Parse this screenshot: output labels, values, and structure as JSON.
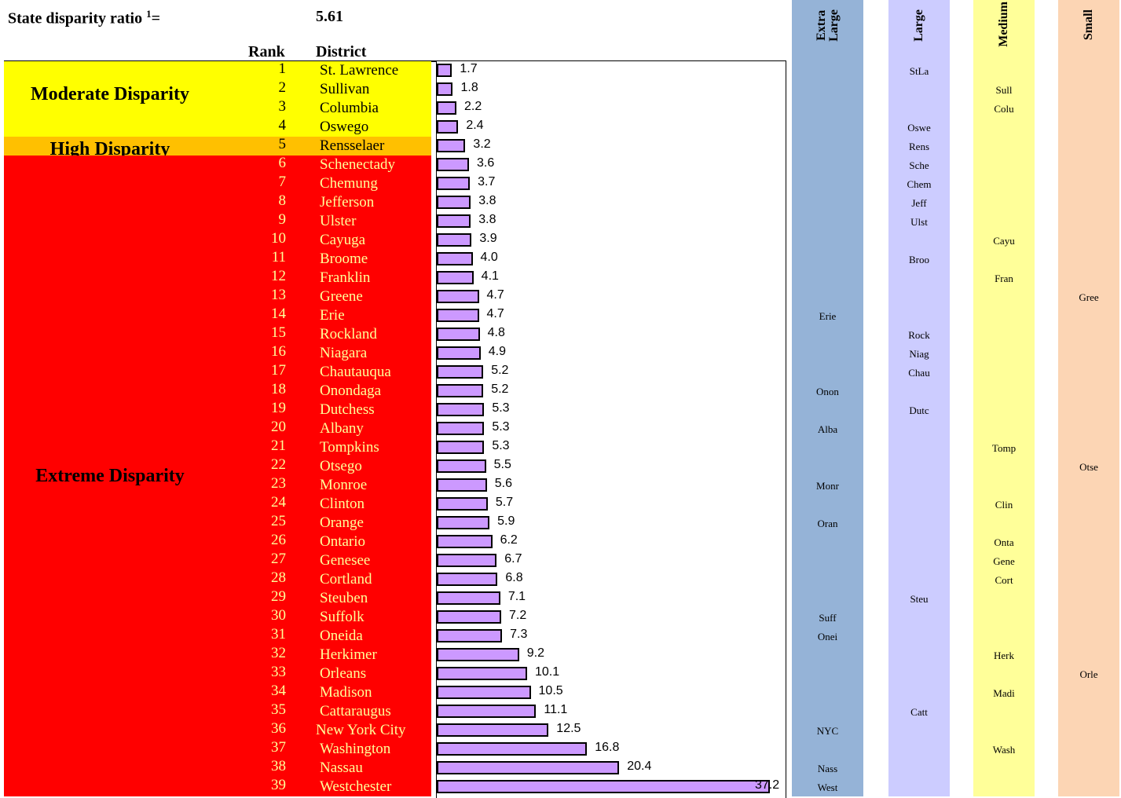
{
  "header": {
    "ratio_label": "State disparity ratio",
    "ratio_superscript": "1",
    "ratio_equals": "=",
    "ratio_value": "5.61",
    "rank_header": "Rank",
    "district_header": "District"
  },
  "bands": [
    {
      "label": "Moderate Disparity",
      "from_rank": 1,
      "to_rank": 4,
      "color": "#ffff00",
      "text_color": "#000000"
    },
    {
      "label": "High Disparity",
      "from_rank": 5,
      "to_rank": 5,
      "color": "#ffc000",
      "text_color": "#000000"
    },
    {
      "label": "Extreme Disparity",
      "from_rank": 6,
      "to_rank": 39,
      "color": "#ff0000",
      "text_color": "#000000"
    }
  ],
  "size_columns": [
    {
      "key": "xl",
      "label": "Extra\nLarge",
      "color": "#95b3d7"
    },
    {
      "key": "l",
      "label": "Large",
      "color": "#ccccff"
    },
    {
      "key": "m",
      "label": "Medium",
      "color": "#ffff99"
    },
    {
      "key": "s",
      "label": "Small",
      "color": "#fcd5b4"
    }
  ],
  "colors": {
    "bar_fill": "#cc99ff",
    "moderate_text": "#000000",
    "extreme_text": "#ffff99"
  },
  "chart_data": {
    "type": "bar",
    "orientation": "horizontal",
    "xlim": [
      0,
      39
    ],
    "rows": [
      {
        "rank": "1",
        "district": "St. Lawrence",
        "value": 1.7,
        "label": "1.7",
        "size": "l",
        "abbr": "StLa"
      },
      {
        "rank": "2",
        "district": "Sullivan",
        "value": 1.8,
        "label": "1.8",
        "size": "m",
        "abbr": "Sull"
      },
      {
        "rank": "3",
        "district": "Columbia",
        "value": 2.2,
        "label": "2.2",
        "size": "m",
        "abbr": "Colu"
      },
      {
        "rank": "4",
        "district": "Oswego",
        "value": 2.4,
        "label": "2.4",
        "size": "l",
        "abbr": "Oswe"
      },
      {
        "rank": "5",
        "district": "Rensselaer",
        "value": 3.2,
        "label": "3.2",
        "size": "l",
        "abbr": "Rens"
      },
      {
        "rank": "6",
        "district": "Schenectady",
        "value": 3.6,
        "label": "3.6",
        "size": "l",
        "abbr": "Sche"
      },
      {
        "rank": "7",
        "district": "Chemung",
        "value": 3.7,
        "label": "3.7",
        "size": "l",
        "abbr": "Chem"
      },
      {
        "rank": "8",
        "district": "Jefferson",
        "value": 3.8,
        "label": "3.8",
        "size": "l",
        "abbr": "Jeff"
      },
      {
        "rank": "9",
        "district": "Ulster",
        "value": 3.8,
        "label": "3.8",
        "size": "l",
        "abbr": "Ulst"
      },
      {
        "rank": "10",
        "district": "Cayuga",
        "value": 3.9,
        "label": "3.9",
        "size": "m",
        "abbr": "Cayu"
      },
      {
        "rank": "11",
        "district": "Broome",
        "value": 4.0,
        "label": "4.0",
        "size": "l",
        "abbr": "Broo"
      },
      {
        "rank": "12",
        "district": "Franklin",
        "value": 4.1,
        "label": "4.1",
        "size": "m",
        "abbr": "Fran"
      },
      {
        "rank": "13",
        "district": "Greene",
        "value": 4.7,
        "label": "4.7",
        "size": "s",
        "abbr": "Gree"
      },
      {
        "rank": "14",
        "district": "Erie",
        "value": 4.7,
        "label": "4.7",
        "size": "xl",
        "abbr": "Erie"
      },
      {
        "rank": "15",
        "district": "Rockland",
        "value": 4.8,
        "label": "4.8",
        "size": "l",
        "abbr": "Rock"
      },
      {
        "rank": "16",
        "district": "Niagara",
        "value": 4.9,
        "label": "4.9",
        "size": "l",
        "abbr": "Niag"
      },
      {
        "rank": "17",
        "district": "Chautauqua",
        "value": 5.2,
        "label": "5.2",
        "size": "l",
        "abbr": "Chau"
      },
      {
        "rank": "18",
        "district": "Onondaga",
        "value": 5.2,
        "label": "5.2",
        "size": "xl",
        "abbr": "Onon"
      },
      {
        "rank": "19",
        "district": "Dutchess",
        "value": 5.3,
        "label": "5.3",
        "size": "l",
        "abbr": "Dutc"
      },
      {
        "rank": "20",
        "district": "Albany",
        "value": 5.3,
        "label": "5.3",
        "size": "xl",
        "abbr": "Alba"
      },
      {
        "rank": "21",
        "district": "Tompkins",
        "value": 5.3,
        "label": "5.3",
        "size": "m",
        "abbr": "Tomp"
      },
      {
        "rank": "22",
        "district": "Otsego",
        "value": 5.5,
        "label": "5.5",
        "size": "s",
        "abbr": "Otse"
      },
      {
        "rank": "23",
        "district": "Monroe",
        "value": 5.6,
        "label": "5.6",
        "size": "xl",
        "abbr": "Monr"
      },
      {
        "rank": "24",
        "district": "Clinton",
        "value": 5.7,
        "label": "5.7",
        "size": "m",
        "abbr": "Clin"
      },
      {
        "rank": "25",
        "district": "Orange",
        "value": 5.9,
        "label": "5.9",
        "size": "xl",
        "abbr": "Oran"
      },
      {
        "rank": "26",
        "district": "Ontario",
        "value": 6.2,
        "label": "6.2",
        "size": "m",
        "abbr": "Onta"
      },
      {
        "rank": "27",
        "district": "Genesee",
        "value": 6.7,
        "label": "6.7",
        "size": "m",
        "abbr": "Gene"
      },
      {
        "rank": "28",
        "district": "Cortland",
        "value": 6.8,
        "label": "6.8",
        "size": "m",
        "abbr": "Cort"
      },
      {
        "rank": "29",
        "district": "Steuben",
        "value": 7.1,
        "label": "7.1",
        "size": "l",
        "abbr": "Steu"
      },
      {
        "rank": "30",
        "district": "Suffolk",
        "value": 7.2,
        "label": "7.2",
        "size": "xl",
        "abbr": "Suff"
      },
      {
        "rank": "31",
        "district": "Oneida",
        "value": 7.3,
        "label": "7.3",
        "size": "xl",
        "abbr": "Onei"
      },
      {
        "rank": "32",
        "district": "Herkimer",
        "value": 9.2,
        "label": "9.2",
        "size": "m",
        "abbr": "Herk"
      },
      {
        "rank": "33",
        "district": "Orleans",
        "value": 10.1,
        "label": "10.1",
        "size": "s",
        "abbr": "Orle"
      },
      {
        "rank": "34",
        "district": "Madison",
        "value": 10.5,
        "label": "10.5",
        "size": "m",
        "abbr": "Madi"
      },
      {
        "rank": "35",
        "district": "Cattaraugus",
        "value": 11.1,
        "label": "11.1",
        "size": "l",
        "abbr": "Catt"
      },
      {
        "rank": "36",
        "district": "New York City",
        "value": 12.5,
        "label": "12.5",
        "size": "xl",
        "abbr": "NYC"
      },
      {
        "rank": "37",
        "district": "Washington",
        "value": 16.8,
        "label": "16.8",
        "size": "m",
        "abbr": "Wash"
      },
      {
        "rank": "38",
        "district": "Nassau",
        "value": 20.4,
        "label": "20.4",
        "size": "xl",
        "abbr": "Nass"
      },
      {
        "rank": "39",
        "district": "Westchester",
        "value": 37.2,
        "label": "37.2",
        "size": "xl",
        "abbr": "West"
      }
    ]
  }
}
